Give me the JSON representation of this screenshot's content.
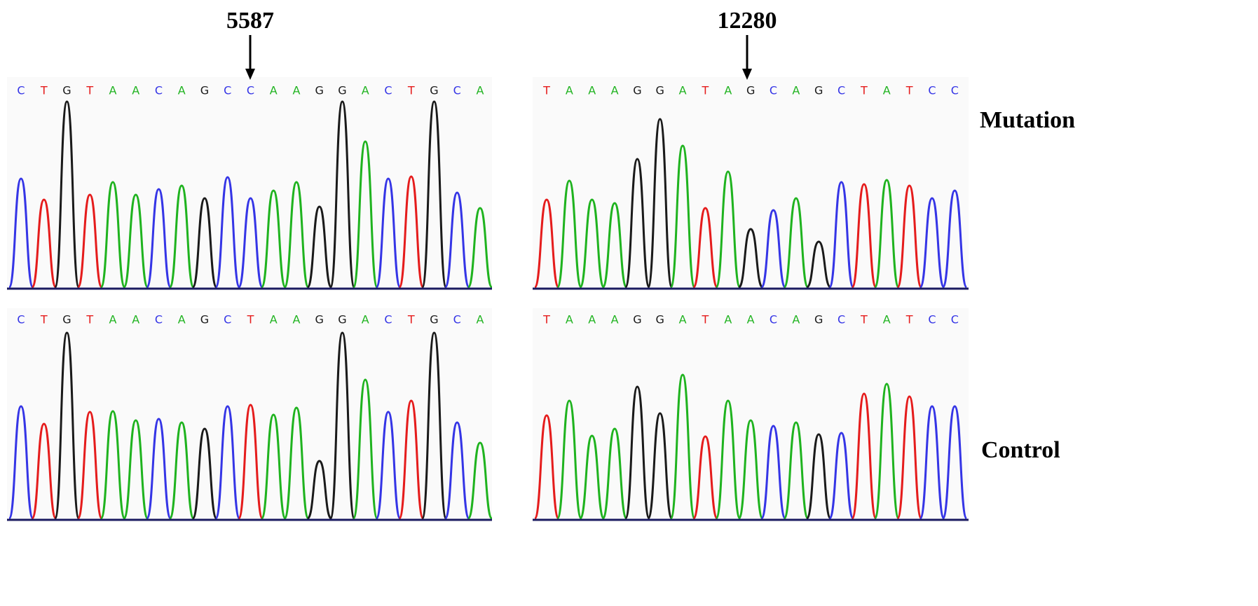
{
  "panels": [
    {
      "position": "5587",
      "mutation": [
        "C",
        "T",
        "G",
        "T",
        "A",
        "A",
        "C",
        "A",
        "G",
        "C",
        "C",
        "A",
        "A",
        "G",
        "G",
        "A",
        "C",
        "T",
        "G",
        "C",
        "A"
      ],
      "control": [
        "C",
        "T",
        "G",
        "T",
        "A",
        "A",
        "C",
        "A",
        "G",
        "C",
        "T",
        "A",
        "A",
        "G",
        "G",
        "A",
        "C",
        "T",
        "G",
        "C",
        "A"
      ]
    },
    {
      "position": "12280",
      "mutation": [
        "T",
        "A",
        "A",
        "A",
        "G",
        "G",
        "A",
        "T",
        "A",
        "G",
        "C",
        "A",
        "G",
        "C",
        "T",
        "A",
        "T",
        "C",
        "C"
      ],
      "control": [
        "T",
        "A",
        "A",
        "A",
        "G",
        "G",
        "A",
        "T",
        "A",
        "A",
        "C",
        "A",
        "G",
        "C",
        "T",
        "A",
        "T",
        "C",
        "C"
      ]
    }
  ],
  "row_labels": {
    "mutation": "Mutation",
    "control": "Control"
  }
}
